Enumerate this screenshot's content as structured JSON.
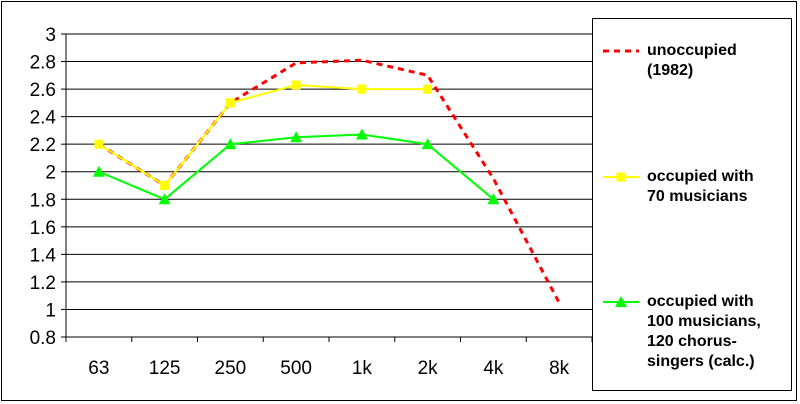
{
  "chart_data": {
    "type": "line",
    "title": "",
    "xlabel": "",
    "ylabel": "",
    "categories": [
      "63",
      "125",
      "250",
      "500",
      "1k",
      "2k",
      "4k",
      "8k"
    ],
    "ylim": [
      0.8,
      3
    ],
    "yticks": [
      "0.8",
      "1",
      "1.2",
      "1.4",
      "1.6",
      "1.8",
      "2",
      "2.2",
      "2.4",
      "2.6",
      "2.8",
      "3"
    ],
    "grid": true,
    "legend_position": "right",
    "series": [
      {
        "name": "unoccupied (1982)",
        "legend_lines": [
          "unoccupied",
          "(1982)"
        ],
        "color": "#ff0000",
        "style": "dotted",
        "marker": "none",
        "values": [
          2.2,
          1.9,
          2.5,
          2.79,
          2.81,
          2.7,
          1.95,
          1.05
        ]
      },
      {
        "name": "occupied with 70 musicians",
        "legend_lines": [
          "occupied with",
          "70 musicians"
        ],
        "color": "#ffff00",
        "style": "solid",
        "marker": "square",
        "values": [
          2.2,
          1.9,
          2.5,
          2.63,
          2.6,
          2.6,
          null,
          null
        ]
      },
      {
        "name": "occupied with 100 musicians, 120 chorus-singers (calc.)",
        "legend_lines": [
          "occupied with",
          "100 musicians,",
          "120 chorus-",
          "singers (calc.)"
        ],
        "color": "#00ff00",
        "style": "solid",
        "marker": "triangle",
        "values": [
          2.0,
          1.8,
          2.2,
          2.25,
          2.27,
          2.2,
          1.8,
          null
        ]
      }
    ]
  }
}
